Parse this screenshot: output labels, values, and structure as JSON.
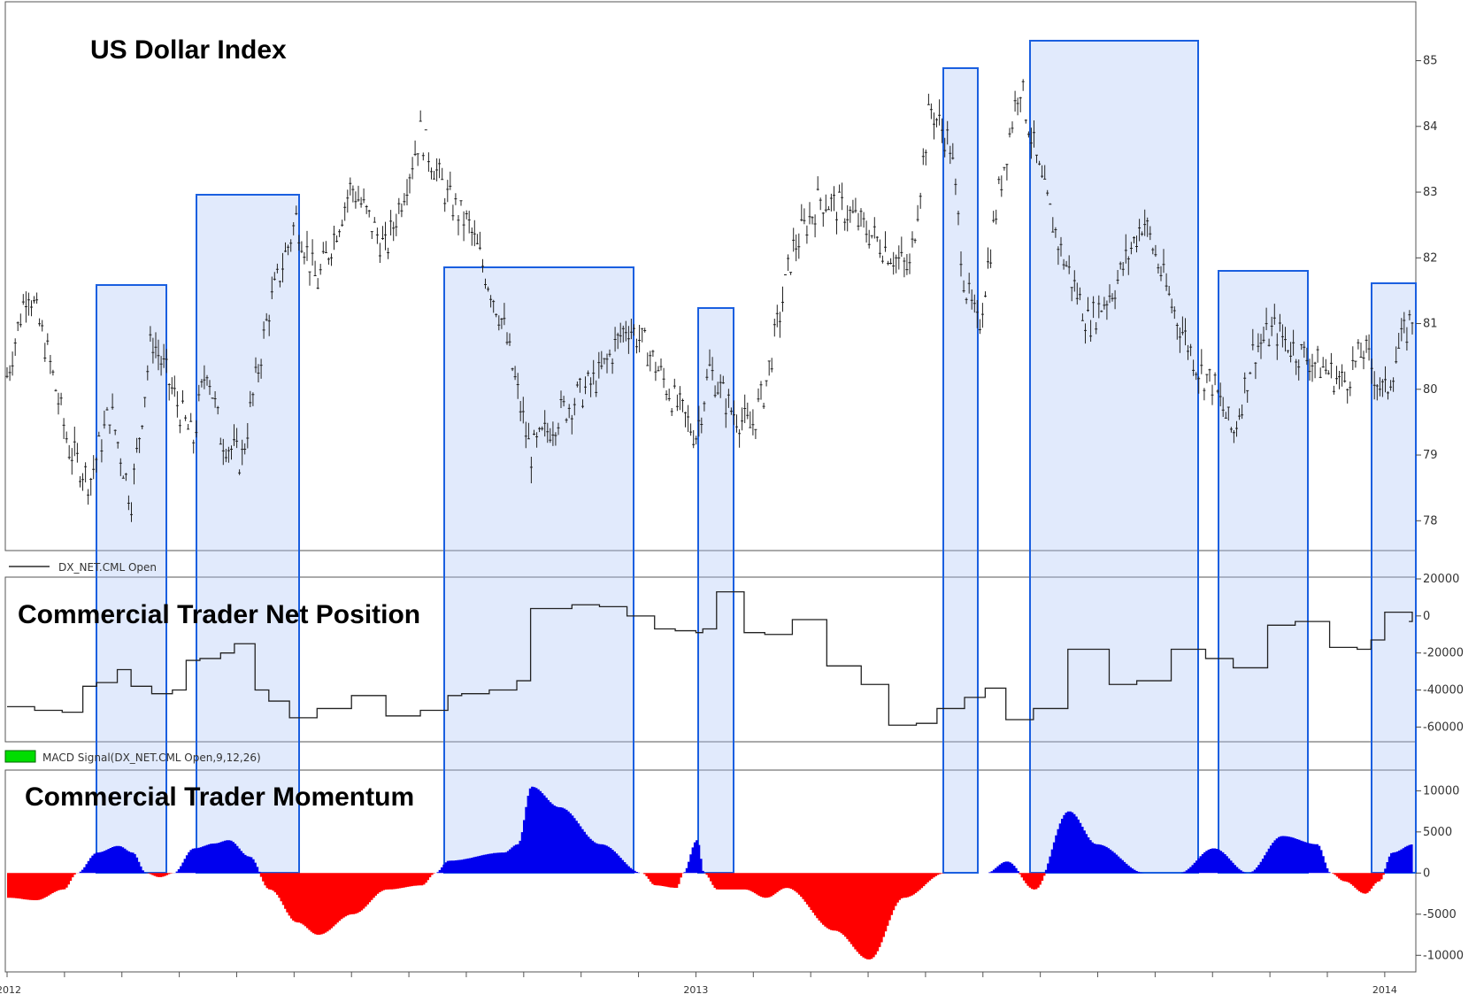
{
  "chart_data": [
    {
      "type": "line",
      "title": "US Dollar Index",
      "y_ticks": [
        78,
        79,
        80,
        81,
        82,
        83,
        84,
        85
      ],
      "ylim": [
        77.6,
        85.6
      ],
      "x_ticks": [
        "2012",
        "2013",
        "2014"
      ],
      "series": [
        {
          "x": [
            2012.0,
            2012.03,
            2012.06,
            2012.09,
            2012.12,
            2012.15,
            2012.18,
            2012.21,
            2012.25,
            2012.27,
            2012.29,
            2012.31,
            2012.34,
            2012.38,
            2012.42,
            2012.45,
            2012.5,
            2012.55,
            2012.6,
            2012.64,
            2012.67,
            2012.7,
            2012.72,
            2012.76,
            2012.8,
            2012.86,
            2012.9,
            2012.93,
            2012.97,
            2013.0,
            2013.02,
            2013.05,
            2013.08,
            2013.1,
            2013.14,
            2013.18,
            2013.22,
            2013.27,
            2013.31,
            2013.34,
            2013.37,
            2013.39,
            2013.41,
            2013.44,
            2013.47,
            2013.5,
            2013.53,
            2013.57,
            2013.61,
            2013.65,
            2013.69,
            2013.73,
            2013.75,
            2013.78,
            2013.81,
            2013.84,
            2013.87,
            2013.9,
            2013.94,
            2013.97,
            2014.0,
            2014.02,
            2014.04
          ],
          "values": [
            80.2,
            81.6,
            80.5,
            79.1,
            78.6,
            79.7,
            78.3,
            80.8,
            79.7,
            79.2,
            80.4,
            79.3,
            78.9,
            81.2,
            82.6,
            81.6,
            83.1,
            82.1,
            83.9,
            82.9,
            82.5,
            81.6,
            81.0,
            79.0,
            79.6,
            80.2,
            81.0,
            80.6,
            79.8,
            79.3,
            80.3,
            79.7,
            79.4,
            80.0,
            82.1,
            82.9,
            82.7,
            82.2,
            81.8,
            84.3,
            83.7,
            81.6,
            80.9,
            83.0,
            84.7,
            83.2,
            82.1,
            81.0,
            81.6,
            82.6,
            81.3,
            80.3,
            80.1,
            79.3,
            80.6,
            80.9,
            80.6,
            80.4,
            80.1,
            80.6,
            79.9,
            80.6,
            81.1
          ]
        }
      ]
    },
    {
      "type": "line",
      "title": "Commercial Trader Net Position",
      "legend": "DX_NET.CML Open",
      "y_ticks": [
        20000,
        0,
        -20000,
        -40000,
        -60000
      ],
      "ylim": [
        -67000,
        20000
      ],
      "x_ticks": [
        "2012",
        "2013",
        "2014"
      ],
      "series": [
        {
          "name": "DX_NET.CML Open",
          "x": [
            2012.0,
            2012.04,
            2012.08,
            2012.11,
            2012.13,
            2012.16,
            2012.18,
            2012.21,
            2012.24,
            2012.26,
            2012.28,
            2012.31,
            2012.33,
            2012.36,
            2012.38,
            2012.41,
            2012.45,
            2012.5,
            2012.55,
            2012.6,
            2012.64,
            2012.66,
            2012.7,
            2012.74,
            2012.76,
            2012.82,
            2012.86,
            2012.9,
            2012.94,
            2012.97,
            2013.0,
            2013.01,
            2013.03,
            2013.07,
            2013.1,
            2013.14,
            2013.19,
            2013.24,
            2013.28,
            2013.32,
            2013.35,
            2013.39,
            2013.42,
            2013.45,
            2013.49,
            2013.54,
            2013.6,
            2013.64,
            2013.69,
            2013.74,
            2013.78,
            2013.83,
            2013.87,
            2013.92,
            2013.96,
            2013.98,
            2014.0,
            2014.04
          ],
          "values": [
            -49000,
            -51000,
            -52000,
            -38000,
            -36000,
            -29000,
            -38000,
            -42000,
            -40000,
            -24000,
            -23000,
            -20000,
            -15000,
            -40000,
            -46000,
            -55000,
            -50000,
            -43000,
            -54000,
            -51000,
            -43000,
            -42000,
            -40000,
            -35000,
            4000,
            6000,
            5000,
            0,
            -7000,
            -8000,
            -9000,
            -7000,
            13000,
            -9000,
            -10000,
            -2000,
            -27000,
            -37000,
            -59000,
            -58000,
            -50000,
            -44000,
            -39000,
            -56000,
            -50000,
            -18000,
            -37000,
            -35000,
            -18000,
            -23000,
            -28000,
            -5000,
            -3000,
            -17000,
            -18000,
            -13000,
            2000,
            -3000
          ]
        }
      ]
    },
    {
      "type": "area",
      "title": "Commercial Trader Momentum",
      "legend": "MACD Signal(DX_NET.CML Open,9,12,26)",
      "y_ticks": [
        10000,
        5000,
        0,
        -5000,
        -10000
      ],
      "ylim": [
        -11800,
        12300
      ],
      "x_ticks": [
        "2012",
        "2013",
        "2014"
      ],
      "colors": {
        "positive": "#0000ee",
        "negative": "#ff0000",
        "legend_swatch": "#00dd00"
      },
      "series": [
        {
          "name": "MACD Signal(DX_NET.CML Open,9,12,26)",
          "x": [
            2012.0,
            2012.04,
            2012.08,
            2012.1,
            2012.13,
            2012.16,
            2012.18,
            2012.2,
            2012.22,
            2012.24,
            2012.27,
            2012.3,
            2012.32,
            2012.35,
            2012.38,
            2012.42,
            2012.45,
            2012.5,
            2012.55,
            2012.6,
            2012.62,
            2012.64,
            2012.72,
            2012.74,
            2012.76,
            2012.8,
            2012.86,
            2012.92,
            2012.94,
            2012.97,
            2012.98,
            2013.0,
            2013.01,
            2013.03,
            2013.07,
            2013.1,
            2013.13,
            2013.2,
            2013.25,
            2013.3,
            2013.36,
            2013.42,
            2013.45,
            2013.49,
            2013.54,
            2013.58,
            2013.65,
            2013.7,
            2013.75,
            2013.8,
            2013.85,
            2013.9,
            2013.92,
            2013.94,
            2013.97,
            2013.99,
            2014.01,
            2014.04
          ],
          "values": [
            -3000,
            -3300,
            -2000,
            0,
            2500,
            3300,
            2500,
            0,
            -500,
            0,
            3000,
            3600,
            4000,
            2000,
            -2000,
            -6000,
            -7500,
            -5000,
            -2000,
            -1500,
            0,
            1500,
            2500,
            3500,
            10500,
            8000,
            3500,
            0,
            -1500,
            -1800,
            0,
            4000,
            0,
            -2000,
            -2000,
            -3000,
            -1800,
            -7000,
            -10500,
            -3000,
            0,
            0,
            1400,
            -2000,
            7500,
            3500,
            0,
            0,
            3000,
            0,
            4500,
            3500,
            0,
            -1000,
            -2500,
            -1000,
            2500,
            3500
          ]
        }
      ]
    }
  ]
}
